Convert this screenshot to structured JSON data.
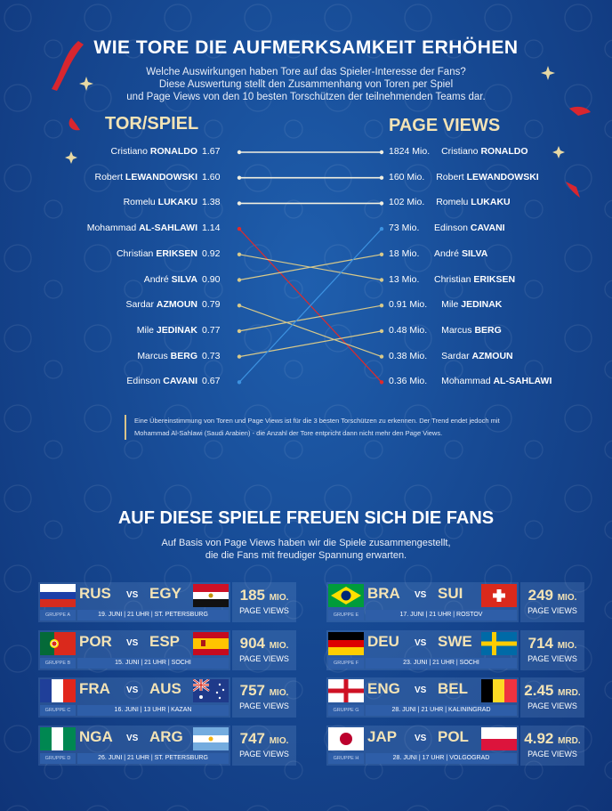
{
  "title": "WIE TORE DIE AUFMERKSAMKEIT ERHÖHEN",
  "intro": [
    "Welche Auswirkungen haben Tore auf das Spieler-Interesse der Fans?",
    "Diese Auswertung stellt den Zusammenhang von Toren per Spiel",
    "und Page Views von den 10 besten Torschützen der teilnehmenden Teams dar."
  ],
  "chart_data": {
    "type": "slope",
    "left_header": "TOR/SPIEL",
    "right_header": "PAGE VIEWS",
    "left": [
      {
        "first": "Cristiano",
        "last": "RONALDO",
        "value": 1.67,
        "label": "1.67"
      },
      {
        "first": "Robert",
        "last": "LEWANDOWSKI",
        "value": 1.6,
        "label": "1.60"
      },
      {
        "first": "Romelu",
        "last": "LUKAKU",
        "value": 1.38,
        "label": "1.38"
      },
      {
        "first": "Mohammad",
        "last": "AL-SAHLAWI",
        "value": 1.14,
        "label": "1.14"
      },
      {
        "first": "Christian",
        "last": "ERIKSEN",
        "value": 0.92,
        "label": "0.92"
      },
      {
        "first": "André",
        "last": "SILVA",
        "value": 0.9,
        "label": "0.90"
      },
      {
        "first": "Sardar",
        "last": "AZMOUN",
        "value": 0.79,
        "label": "0.79"
      },
      {
        "first": "Mile",
        "last": "JEDINAK",
        "value": 0.77,
        "label": "0.77"
      },
      {
        "first": "Marcus",
        "last": "BERG",
        "value": 0.73,
        "label": "0.73"
      },
      {
        "first": "Edinson",
        "last": "CAVANI",
        "value": 0.67,
        "label": "0.67"
      }
    ],
    "right": [
      {
        "first": "Cristiano",
        "last": "RONALDO",
        "value": 1824,
        "label": "1824 Mio."
      },
      {
        "first": "Robert",
        "last": "LEWANDOWSKI",
        "value": 160,
        "label": "160 Mio."
      },
      {
        "first": "Romelu",
        "last": "LUKAKU",
        "value": 102,
        "label": "102 Mio."
      },
      {
        "first": "Edinson",
        "last": "CAVANI",
        "value": 73,
        "label": "73 Mio."
      },
      {
        "first": "André",
        "last": "SILVA",
        "value": 18,
        "label": "18 Mio."
      },
      {
        "first": "Christian",
        "last": "ERIKSEN",
        "value": 13,
        "label": "13 Mio."
      },
      {
        "first": "Mile",
        "last": "JEDINAK",
        "value": 0.91,
        "label": "0.91 Mio."
      },
      {
        "first": "Marcus",
        "last": "BERG",
        "value": 0.48,
        "label": "0.48 Mio."
      },
      {
        "first": "Sardar",
        "last": "AZMOUN",
        "value": 0.38,
        "label": "0.38 Mio."
      },
      {
        "first": "Mohammad",
        "last": "AL-SAHLAWI",
        "value": 0.36,
        "label": "0.36 Mio."
      }
    ],
    "colors": {
      "match": "#f1efe0",
      "down": "#e02a2a",
      "up": "#3d92e0",
      "cross": "#d8c98a"
    }
  },
  "note": "Eine Übereinstimmung von Toren und Page Views ist für die 3 besten Torschützen zu erkennen. Der Trend endet jedoch mit Mohammad Al-Sahlawi (Saudi Arabien) - die Anzahl der Tore entpricht dann nicht mehr den Page Views.",
  "section2": {
    "title": "AUF DIESE SPIELE FREUEN SICH DIE FANS",
    "intro": [
      "Auf Basis von Page Views haben wir die Spiele zusammengestellt,",
      "die die Fans mit freudiger Spannung erwarten."
    ],
    "vs": "VS",
    "views_label": "PAGE VIEWS",
    "matches": [
      {
        "home": "RUS",
        "away": "EGY",
        "group": "GRUPPE A",
        "info": "19. JUNI | 21 UHR | ST. PETERSBURG",
        "views": "185",
        "unit": "MIO.",
        "views_value_mio": 185
      },
      {
        "home": "POR",
        "away": "ESP",
        "group": "GRUPPE B",
        "info": "15. JUNI | 21 UHR | SOCHI",
        "views": "904",
        "unit": "MIO.",
        "views_value_mio": 904
      },
      {
        "home": "FRA",
        "away": "AUS",
        "group": "GRUPPE C",
        "info": "16. JUNI | 13 UHR | KAZAN",
        "views": "757",
        "unit": "MIO.",
        "views_value_mio": 757
      },
      {
        "home": "NGA",
        "away": "ARG",
        "group": "GRUPPE D",
        "info": "26. JUNI | 21 UHR | ST. PETERSBURG",
        "views": "747",
        "unit": "MIO.",
        "views_value_mio": 747
      },
      {
        "home": "BRA",
        "away": "SUI",
        "group": "GRUPPE E",
        "info": "17. JUNI | 21 UHR | ROSTOV",
        "views": "249",
        "unit": "MIO.",
        "views_value_mio": 249
      },
      {
        "home": "DEU",
        "away": "SWE",
        "group": "GRUPPE F",
        "info": "23. JUNI | 21 UHR | SOCHI",
        "views": "714",
        "unit": "MIO.",
        "views_value_mio": 714
      },
      {
        "home": "ENG",
        "away": "BEL",
        "group": "GRUPPE G",
        "info": "28. JUNI | 21 UHR | KALININGRAD",
        "views": "2.45",
        "unit": "MRD.",
        "views_value_mio": 2450
      },
      {
        "home": "JAP",
        "away": "POL",
        "group": "GRUPPE H",
        "info": "28. JUNI | 17 UHR | VOLGOGRAD",
        "views": "4.92",
        "unit": "MRD.",
        "views_value_mio": 4920
      }
    ]
  }
}
